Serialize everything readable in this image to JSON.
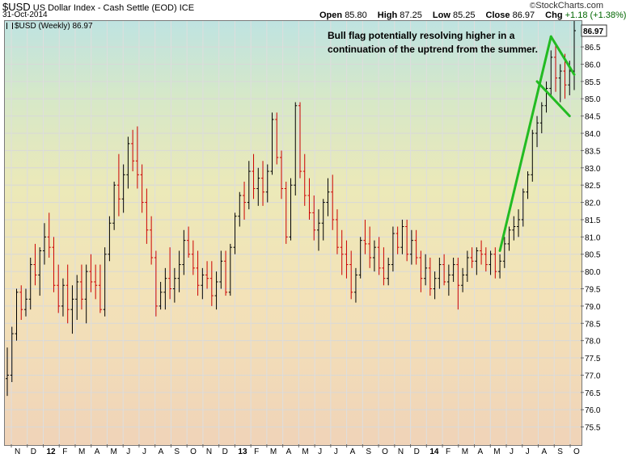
{
  "header": {
    "symbol": "$USD",
    "name": "US Dollar Index - Cash Settle (EOD)",
    "exchange": "ICE",
    "date": "31-Oct-2014",
    "brand": "StockCharts.com",
    "brand_symbol": "©",
    "open_label": "Open",
    "open": "85.80",
    "high_label": "High",
    "high": "87.25",
    "low_label": "Low",
    "low": "85.25",
    "close_label": "Close",
    "close": "86.97",
    "chg_label": "Chg",
    "chg": "+1.18 (+1.38%)"
  },
  "series_label": "$USD (Weekly) 86.97",
  "annotation": "Bull flag potentially resolving higher in a continuation of the uptrend from the summer.",
  "colors": {
    "up": "#000000",
    "down": "#cc0000",
    "annotation_lines": "#22bb22",
    "last_price_box": "#333333"
  },
  "chart_data": {
    "type": "ohlc",
    "title": "$USD (Weekly) 86.97",
    "ylim": [
      75.0,
      87.25
    ],
    "y_ticks": [
      75.5,
      76.0,
      76.5,
      77.0,
      77.5,
      78.0,
      78.5,
      79.0,
      79.5,
      80.0,
      80.5,
      81.0,
      81.5,
      82.0,
      82.5,
      83.0,
      83.5,
      84.0,
      84.5,
      85.0,
      85.5,
      86.0,
      86.5
    ],
    "last_price": "86.97",
    "x_ticks": [
      "N",
      "D",
      "12",
      "F",
      "M",
      "A",
      "M",
      "J",
      "J",
      "A",
      "S",
      "O",
      "N",
      "D",
      "13",
      "F",
      "M",
      "A",
      "M",
      "J",
      "J",
      "A",
      "S",
      "O",
      "N",
      "D",
      "14",
      "F",
      "M",
      "A",
      "M",
      "J",
      "J",
      "A",
      "S",
      "O"
    ],
    "bold_x_ticks": [
      "12",
      "13",
      "14"
    ],
    "grid": true,
    "bars": [
      [
        76.9,
        77.8,
        76.4,
        77.0
      ],
      [
        77.0,
        78.4,
        76.8,
        78.2
      ],
      [
        78.2,
        79.5,
        78.0,
        79.4
      ],
      [
        79.4,
        79.6,
        78.6,
        78.9
      ],
      [
        78.9,
        79.5,
        78.7,
        79.2
      ],
      [
        79.2,
        80.4,
        78.9,
        80.2
      ],
      [
        80.2,
        80.8,
        79.6,
        79.9
      ],
      [
        79.9,
        80.7,
        79.3,
        80.6
      ],
      [
        80.6,
        81.4,
        80.2,
        81.0
      ],
      [
        81.0,
        81.7,
        80.4,
        80.7
      ],
      [
        80.7,
        81.0,
        79.4,
        79.6
      ],
      [
        79.6,
        80.2,
        78.8,
        79.0
      ],
      [
        79.0,
        79.8,
        78.7,
        79.6
      ],
      [
        79.6,
        80.2,
        78.5,
        78.9
      ],
      [
        78.9,
        79.6,
        78.2,
        79.2
      ],
      [
        79.2,
        79.9,
        78.6,
        79.7
      ],
      [
        79.7,
        80.2,
        78.9,
        79.2
      ],
      [
        79.2,
        80.2,
        78.5,
        80.0
      ],
      [
        80.0,
        80.5,
        79.4,
        79.7
      ],
      [
        79.7,
        80.2,
        79.2,
        79.6
      ],
      [
        79.6,
        80.2,
        78.8,
        78.9
      ],
      [
        78.9,
        80.7,
        78.7,
        80.5
      ],
      [
        80.5,
        81.6,
        80.3,
        81.4
      ],
      [
        81.4,
        82.6,
        81.2,
        82.5
      ],
      [
        82.5,
        83.4,
        81.6,
        82.1
      ],
      [
        82.1,
        83.1,
        81.7,
        82.8
      ],
      [
        82.8,
        83.9,
        82.4,
        83.7
      ],
      [
        83.7,
        84.1,
        82.9,
        83.2
      ],
      [
        83.2,
        84.2,
        82.4,
        82.8
      ],
      [
        82.8,
        83.1,
        81.7,
        82.0
      ],
      [
        82.0,
        82.4,
        80.8,
        81.2
      ],
      [
        81.2,
        81.6,
        80.2,
        80.4
      ],
      [
        80.4,
        80.6,
        78.7,
        79.0
      ],
      [
        79.0,
        79.7,
        78.9,
        79.4
      ],
      [
        79.4,
        80.1,
        78.9,
        79.8
      ],
      [
        79.8,
        80.7,
        79.2,
        79.5
      ],
      [
        79.5,
        80.1,
        79.1,
        79.8
      ],
      [
        79.8,
        80.6,
        79.4,
        80.2
      ],
      [
        80.2,
        81.2,
        79.9,
        80.9
      ],
      [
        80.9,
        81.3,
        80.4,
        80.5
      ],
      [
        80.5,
        80.9,
        79.9,
        80.1
      ],
      [
        80.1,
        80.6,
        79.3,
        79.6
      ],
      [
        79.6,
        80.1,
        79.2,
        79.9
      ],
      [
        79.9,
        80.3,
        79.5,
        79.8
      ],
      [
        79.8,
        80.3,
        79.0,
        79.3
      ],
      [
        79.3,
        80.0,
        78.9,
        79.7
      ],
      [
        79.7,
        80.6,
        79.5,
        80.3
      ],
      [
        80.3,
        80.6,
        79.3,
        79.4
      ],
      [
        79.4,
        80.8,
        79.3,
        80.7
      ],
      [
        80.7,
        81.7,
        80.5,
        81.6
      ],
      [
        81.6,
        82.3,
        81.3,
        82.2
      ],
      [
        82.2,
        82.6,
        81.5,
        82.0
      ],
      [
        82.0,
        83.2,
        81.8,
        82.9
      ],
      [
        82.9,
        83.4,
        82.1,
        82.4
      ],
      [
        82.4,
        83.0,
        81.9,
        82.7
      ],
      [
        82.7,
        83.2,
        81.9,
        82.3
      ],
      [
        82.3,
        83.1,
        82.0,
        82.9
      ],
      [
        82.9,
        84.6,
        82.8,
        84.4
      ],
      [
        84.4,
        84.6,
        83.1,
        83.3
      ],
      [
        83.3,
        83.5,
        82.1,
        82.4
      ],
      [
        82.4,
        82.6,
        80.8,
        81.0
      ],
      [
        81.0,
        82.7,
        80.9,
        82.5
      ],
      [
        82.5,
        84.9,
        82.2,
        84.8
      ],
      [
        84.8,
        84.9,
        82.7,
        82.9
      ],
      [
        82.9,
        83.4,
        81.9,
        82.2
      ],
      [
        82.2,
        82.7,
        81.5,
        81.7
      ],
      [
        81.7,
        82.2,
        80.9,
        81.2
      ],
      [
        81.2,
        81.8,
        80.6,
        81.4
      ],
      [
        81.4,
        82.1,
        80.9,
        82.0
      ],
      [
        82.0,
        82.7,
        81.6,
        82.3
      ],
      [
        82.3,
        82.8,
        81.2,
        81.5
      ],
      [
        81.5,
        81.8,
        80.5,
        80.7
      ],
      [
        80.7,
        81.2,
        79.9,
        80.5
      ],
      [
        80.5,
        80.9,
        79.8,
        80.2
      ],
      [
        80.2,
        80.6,
        79.2,
        79.4
      ],
      [
        79.4,
        80.1,
        79.1,
        79.9
      ],
      [
        79.9,
        81.0,
        79.8,
        80.9
      ],
      [
        80.9,
        81.5,
        80.5,
        80.8
      ],
      [
        80.8,
        81.3,
        80.1,
        80.4
      ],
      [
        80.4,
        80.9,
        80.0,
        80.7
      ],
      [
        80.7,
        81.0,
        79.9,
        80.1
      ],
      [
        80.1,
        80.7,
        79.6,
        79.8
      ],
      [
        79.8,
        80.4,
        79.6,
        80.2
      ],
      [
        80.2,
        81.3,
        80.0,
        81.1
      ],
      [
        81.1,
        81.3,
        80.5,
        80.7
      ],
      [
        80.7,
        81.5,
        80.5,
        81.3
      ],
      [
        81.3,
        81.5,
        80.3,
        80.5
      ],
      [
        80.5,
        81.2,
        80.2,
        80.9
      ],
      [
        80.9,
        81.2,
        80.2,
        80.4
      ],
      [
        80.4,
        80.6,
        79.4,
        79.8
      ],
      [
        79.8,
        80.5,
        79.6,
        80.1
      ],
      [
        80.1,
        80.4,
        79.3,
        79.5
      ],
      [
        79.5,
        80.0,
        79.2,
        79.8
      ],
      [
        79.8,
        80.4,
        79.5,
        80.2
      ],
      [
        80.2,
        80.5,
        79.6,
        79.7
      ],
      [
        79.7,
        80.2,
        79.3,
        79.9
      ],
      [
        79.9,
        80.4,
        79.7,
        80.2
      ],
      [
        80.2,
        80.4,
        78.9,
        79.6
      ],
      [
        79.6,
        80.1,
        79.4,
        79.9
      ],
      [
        79.9,
        80.6,
        79.7,
        80.4
      ],
      [
        80.4,
        80.7,
        80.1,
        80.3
      ],
      [
        80.3,
        80.7,
        79.9,
        80.6
      ],
      [
        80.6,
        80.9,
        80.2,
        80.5
      ],
      [
        80.5,
        80.7,
        80.0,
        80.2
      ],
      [
        80.2,
        80.6,
        79.9,
        80.5
      ],
      [
        80.5,
        80.7,
        79.8,
        80.0
      ],
      [
        80.0,
        80.5,
        79.8,
        80.3
      ],
      [
        80.3,
        81.0,
        80.1,
        80.8
      ],
      [
        80.8,
        81.3,
        80.6,
        81.2
      ],
      [
        81.2,
        81.6,
        80.9,
        81.3
      ],
      [
        81.3,
        81.8,
        81.0,
        81.5
      ],
      [
        81.5,
        82.4,
        81.3,
        82.3
      ],
      [
        82.3,
        82.9,
        82.1,
        82.8
      ],
      [
        82.8,
        84.1,
        82.6,
        84.0
      ],
      [
        84.0,
        84.5,
        83.6,
        84.3
      ],
      [
        84.3,
        84.9,
        84.0,
        84.8
      ],
      [
        84.8,
        85.5,
        84.6,
        85.3
      ],
      [
        85.3,
        86.4,
        85.1,
        86.2
      ],
      [
        86.2,
        86.6,
        85.2,
        85.6
      ],
      [
        85.6,
        86.0,
        84.9,
        85.8
      ],
      [
        85.8,
        86.3,
        85.0,
        85.4
      ],
      [
        85.4,
        86.1,
        85.1,
        85.8
      ],
      [
        85.8,
        87.25,
        85.25,
        86.97
      ]
    ],
    "annotation_lines": [
      {
        "from": [
          106,
          80.6
        ],
        "to": [
          117,
          86.8
        ]
      },
      {
        "from": [
          117,
          86.8
        ],
        "to": [
          122,
          85.7
        ]
      },
      {
        "from": [
          114,
          85.5
        ],
        "to": [
          121,
          84.5
        ]
      }
    ]
  }
}
